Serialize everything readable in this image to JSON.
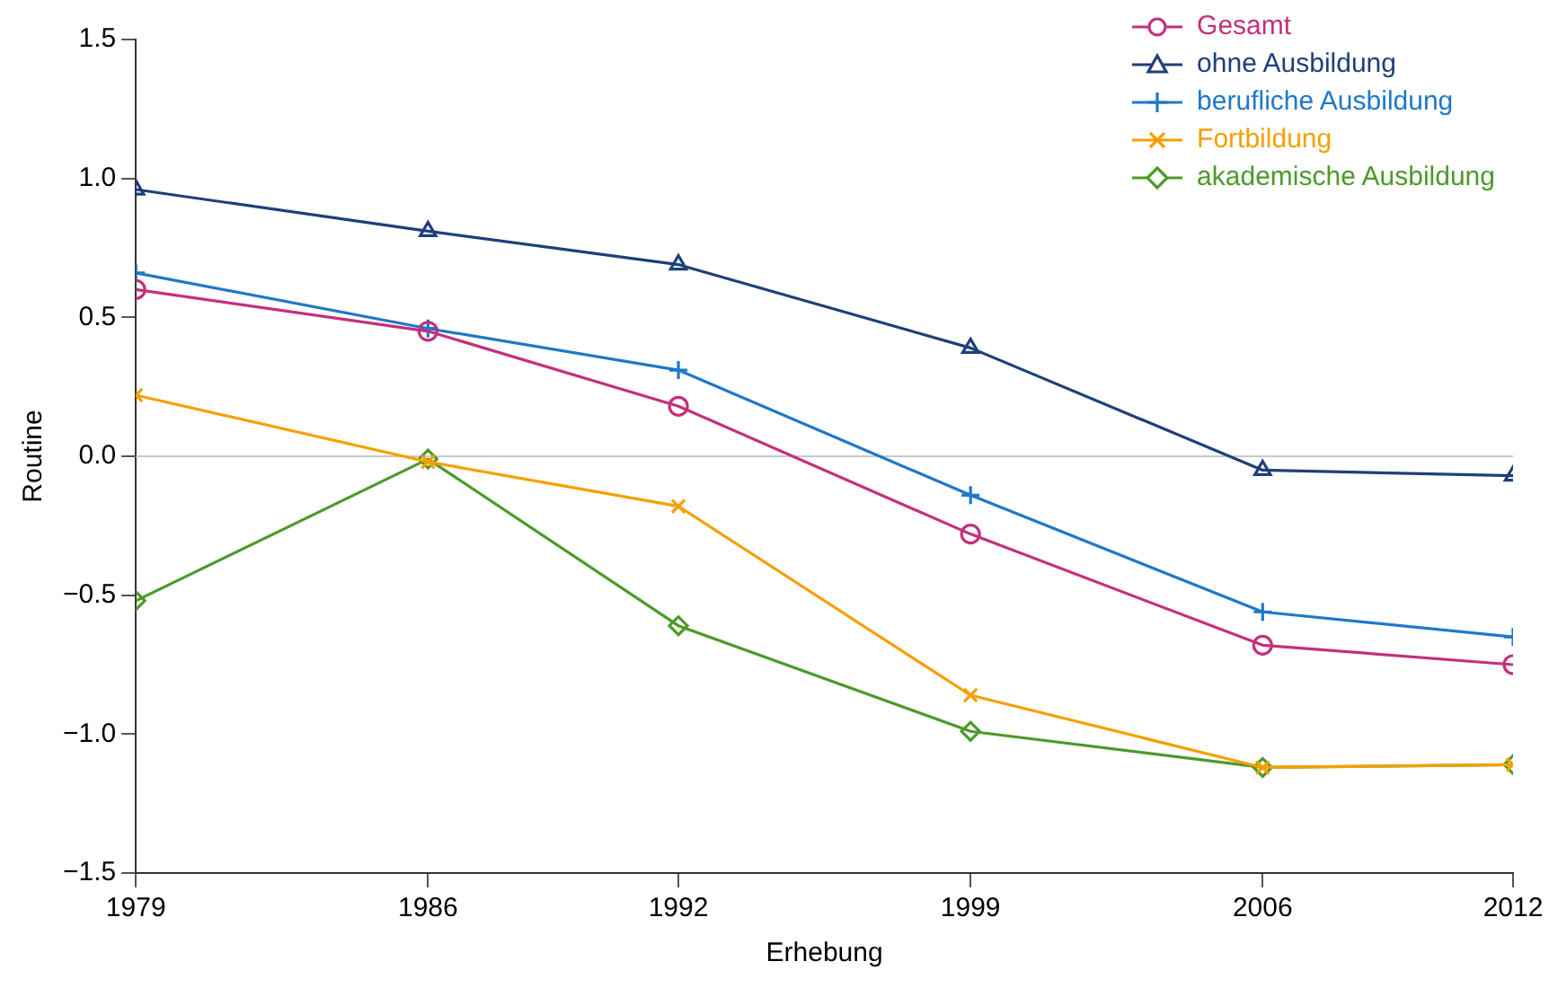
{
  "chart_data": {
    "type": "line",
    "xlabel": "Erhebung",
    "ylabel": "Routine",
    "x": [
      1979,
      1986,
      1992,
      1999,
      2006,
      2012
    ],
    "xlim": [
      1979,
      2012
    ],
    "xticks": [
      1979,
      1986,
      1992,
      1999,
      2006,
      2012
    ],
    "ylim": [
      -1.5,
      1.5
    ],
    "yticks": [
      {
        "value": -1.5,
        "label": "−1.5"
      },
      {
        "value": -1.0,
        "label": "−1.0"
      },
      {
        "value": -0.5,
        "label": "−0.5"
      },
      {
        "value": 0,
        "label": "0.0"
      },
      {
        "value": 0.5,
        "label": "0.5"
      },
      {
        "value": 1.0,
        "label": "1.0"
      },
      {
        "value": 1.5,
        "label": "1.5"
      }
    ],
    "grid": false,
    "legend": "top right",
    "ref_lines": [
      {
        "axis": "y",
        "value": 0,
        "color": "#c8c8c8"
      }
    ],
    "series": [
      {
        "name": "Gesamt",
        "color": "#c4307c",
        "marker": "circle",
        "values": [
          0.6,
          0.45,
          0.18,
          -0.28,
          -0.68,
          -0.75
        ]
      },
      {
        "name": "ohne Ausbildung",
        "color": "#1f3f7a",
        "marker": "triangle",
        "values": [
          0.96,
          0.81,
          0.69,
          0.39,
          -0.05,
          -0.07
        ]
      },
      {
        "name": "berufliche Ausbildung",
        "color": "#1f78c8",
        "marker": "cross",
        "values": [
          0.66,
          0.46,
          0.31,
          -0.14,
          -0.56,
          -0.65
        ]
      },
      {
        "name": "Fortbildung",
        "color": "#f5a000",
        "marker": "x",
        "values": [
          0.22,
          -0.02,
          -0.18,
          -0.86,
          -1.12,
          -1.11
        ]
      },
      {
        "name": "akademische Ausbildung",
        "color": "#4c9a2a",
        "marker": "diamond",
        "values": [
          -0.52,
          -0.01,
          -0.61,
          -0.99,
          -1.12,
          -1.11
        ]
      }
    ]
  }
}
